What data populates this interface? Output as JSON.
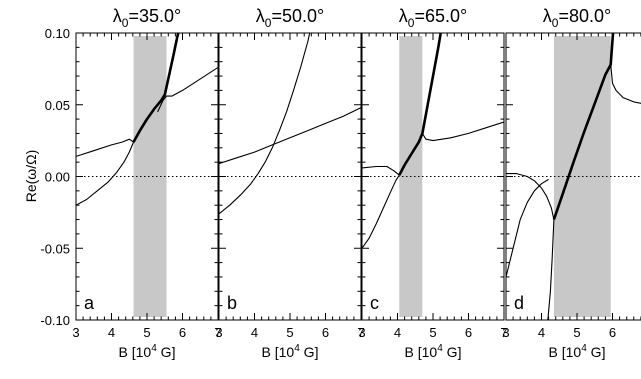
{
  "figure": {
    "ylabel": "Re(ω/Ω)",
    "xlabel_prefix": "B [10",
    "xlabel_exp": "4",
    "xlabel_suffix": " G]",
    "title_symbol": "λ",
    "title_sub": "0",
    "title_eq": "="
  },
  "colors": {
    "shade": "#c8c8c8",
    "line": "#000000",
    "axes": "#000000"
  },
  "chart_data": [
    {
      "type": "line",
      "panel_label": "a",
      "title_value": "35.0°",
      "xlim": [
        3,
        7
      ],
      "ylim": [
        -0.1,
        0.1
      ],
      "x_ticks": [
        "3",
        "4",
        "5",
        "6",
        "7"
      ],
      "y_ticks": [
        "-0.10",
        "-0.05",
        "0.00",
        "0.05",
        "0.10"
      ],
      "zero_line": "dotted",
      "shaded_x": [
        4.62,
        5.55
      ],
      "series": [
        {
          "style": "thin",
          "points": [
            [
              3.0,
              0.014
            ],
            [
              3.5,
              0.018
            ],
            [
              4.0,
              0.022
            ],
            [
              4.3,
              0.024
            ],
            [
              4.5,
              0.026
            ],
            [
              4.62,
              0.024
            ]
          ]
        },
        {
          "style": "thin",
          "points": [
            [
              3.0,
              -0.02
            ],
            [
              3.3,
              -0.016
            ],
            [
              3.6,
              -0.01
            ],
            [
              3.9,
              -0.004
            ],
            [
              4.15,
              0.003
            ],
            [
              4.35,
              0.01
            ],
            [
              4.5,
              0.017
            ],
            [
              4.62,
              0.024
            ]
          ]
        },
        {
          "style": "thick",
          "points": [
            [
              4.62,
              0.024
            ],
            [
              4.8,
              0.032
            ],
            [
              5.0,
              0.04
            ],
            [
              5.2,
              0.047
            ],
            [
              5.4,
              0.053
            ],
            [
              5.5,
              0.057
            ],
            [
              5.6,
              0.068
            ],
            [
              5.75,
              0.085
            ],
            [
              5.85,
              0.097
            ],
            [
              5.93,
              0.105
            ]
          ]
        },
        {
          "style": "thin",
          "points": [
            [
              5.3,
              0.045
            ],
            [
              5.45,
              0.053
            ],
            [
              5.55,
              0.056
            ],
            [
              5.7,
              0.056
            ],
            [
              6.0,
              0.06
            ],
            [
              6.5,
              0.068
            ],
            [
              7.0,
              0.076
            ]
          ]
        }
      ]
    },
    {
      "type": "line",
      "panel_label": "b",
      "title_value": "50.0°",
      "xlim": [
        3,
        7
      ],
      "ylim": [
        -0.1,
        0.1
      ],
      "x_ticks": [
        "3",
        "4",
        "5",
        "6",
        "7"
      ],
      "y_ticks": [
        "-0.10",
        "-0.05",
        "0.00",
        "0.05",
        "0.10"
      ],
      "zero_line": "dotted",
      "shaded_x": null,
      "series": [
        {
          "style": "thin",
          "points": [
            [
              3.0,
              -0.026
            ],
            [
              3.3,
              -0.02
            ],
            [
              3.6,
              -0.013
            ],
            [
              3.9,
              -0.005
            ],
            [
              4.1,
              0.002
            ],
            [
              4.3,
              0.01
            ],
            [
              4.5,
              0.02
            ],
            [
              4.7,
              0.032
            ],
            [
              4.9,
              0.045
            ],
            [
              5.1,
              0.06
            ],
            [
              5.3,
              0.076
            ],
            [
              5.5,
              0.094
            ],
            [
              5.6,
              0.105
            ]
          ]
        },
        {
          "style": "thin",
          "points": [
            [
              3.0,
              0.009
            ],
            [
              3.5,
              0.013
            ],
            [
              4.0,
              0.017
            ],
            [
              4.5,
              0.022
            ],
            [
              5.0,
              0.027
            ],
            [
              5.5,
              0.032
            ],
            [
              6.0,
              0.037
            ],
            [
              6.5,
              0.042
            ],
            [
              7.0,
              0.048
            ]
          ]
        }
      ]
    },
    {
      "type": "line",
      "panel_label": "c",
      "title_value": "65.0°",
      "xlim": [
        3,
        7
      ],
      "ylim": [
        -0.1,
        0.1
      ],
      "x_ticks": [
        "3",
        "4",
        "5",
        "6",
        "7"
      ],
      "y_ticks": [
        "-0.10",
        "-0.05",
        "0.00",
        "0.05",
        "0.10"
      ],
      "zero_line": "dotted",
      "shaded_x": [
        4.05,
        4.7
      ],
      "series": [
        {
          "style": "thin",
          "points": [
            [
              3.0,
              0.006
            ],
            [
              3.4,
              0.007
            ],
            [
              3.7,
              0.007
            ],
            [
              3.9,
              0.004
            ],
            [
              4.05,
              0.001
            ]
          ]
        },
        {
          "style": "thin",
          "points": [
            [
              3.0,
              -0.05
            ],
            [
              3.2,
              -0.043
            ],
            [
              3.4,
              -0.033
            ],
            [
              3.6,
              -0.022
            ],
            [
              3.8,
              -0.011
            ],
            [
              3.95,
              -0.003
            ],
            [
              4.05,
              0.001
            ]
          ]
        },
        {
          "style": "thick",
          "points": [
            [
              4.05,
              0.001
            ],
            [
              4.2,
              0.008
            ],
            [
              4.4,
              0.016
            ],
            [
              4.6,
              0.024
            ],
            [
              4.7,
              0.03
            ],
            [
              4.85,
              0.05
            ],
            [
              5.0,
              0.07
            ],
            [
              5.15,
              0.09
            ],
            [
              5.25,
              0.105
            ]
          ]
        },
        {
          "style": "thin",
          "points": [
            [
              4.7,
              0.03
            ],
            [
              4.8,
              0.026
            ],
            [
              5.0,
              0.025
            ],
            [
              5.5,
              0.027
            ],
            [
              6.0,
              0.03
            ],
            [
              6.5,
              0.034
            ],
            [
              7.0,
              0.038
            ]
          ]
        }
      ]
    },
    {
      "type": "line",
      "panel_label": "d",
      "title_value": "80.0°",
      "xlim": [
        3,
        7
      ],
      "ylim": [
        -0.1,
        0.1
      ],
      "x_ticks": [
        "3",
        "4",
        "5",
        "6",
        "7"
      ],
      "y_ticks": [
        "-0.10",
        "-0.05",
        "0.00",
        "0.05",
        "0.10"
      ],
      "zero_line": "dotted",
      "shaded_x": [
        4.35,
        5.95
      ],
      "series": [
        {
          "style": "thin",
          "points": [
            [
              3.0,
              0.002
            ],
            [
              3.3,
              0.002
            ],
            [
              3.6,
              0.0
            ],
            [
              3.8,
              -0.003
            ],
            [
              4.0,
              -0.008
            ],
            [
              4.15,
              -0.014
            ],
            [
              4.28,
              -0.022
            ],
            [
              4.35,
              -0.03
            ]
          ]
        },
        {
          "style": "thin",
          "points": [
            [
              3.0,
              -0.07
            ],
            [
              3.2,
              -0.05
            ],
            [
              3.4,
              -0.03
            ],
            [
              3.6,
              -0.018
            ],
            [
              3.8,
              -0.01
            ],
            [
              4.0,
              -0.005
            ],
            [
              4.2,
              -0.002
            ]
          ]
        },
        {
          "style": "thin",
          "points": [
            [
              4.35,
              -0.03
            ],
            [
              4.3,
              -0.058
            ],
            [
              4.25,
              -0.08
            ],
            [
              4.2,
              -0.094
            ],
            [
              4.16,
              -0.105
            ]
          ]
        },
        {
          "style": "thick",
          "points": [
            [
              4.35,
              -0.03
            ],
            [
              4.6,
              -0.012
            ],
            [
              4.9,
              0.01
            ],
            [
              5.2,
              0.031
            ],
            [
              5.5,
              0.051
            ],
            [
              5.8,
              0.071
            ],
            [
              5.95,
              0.078
            ],
            [
              6.0,
              0.095
            ],
            [
              6.03,
              0.105
            ]
          ]
        },
        {
          "style": "thin",
          "points": [
            [
              5.95,
              0.078
            ],
            [
              6.0,
              0.065
            ],
            [
              6.1,
              0.06
            ],
            [
              6.3,
              0.055
            ],
            [
              6.6,
              0.052
            ],
            [
              7.0,
              0.05
            ]
          ]
        }
      ]
    }
  ]
}
